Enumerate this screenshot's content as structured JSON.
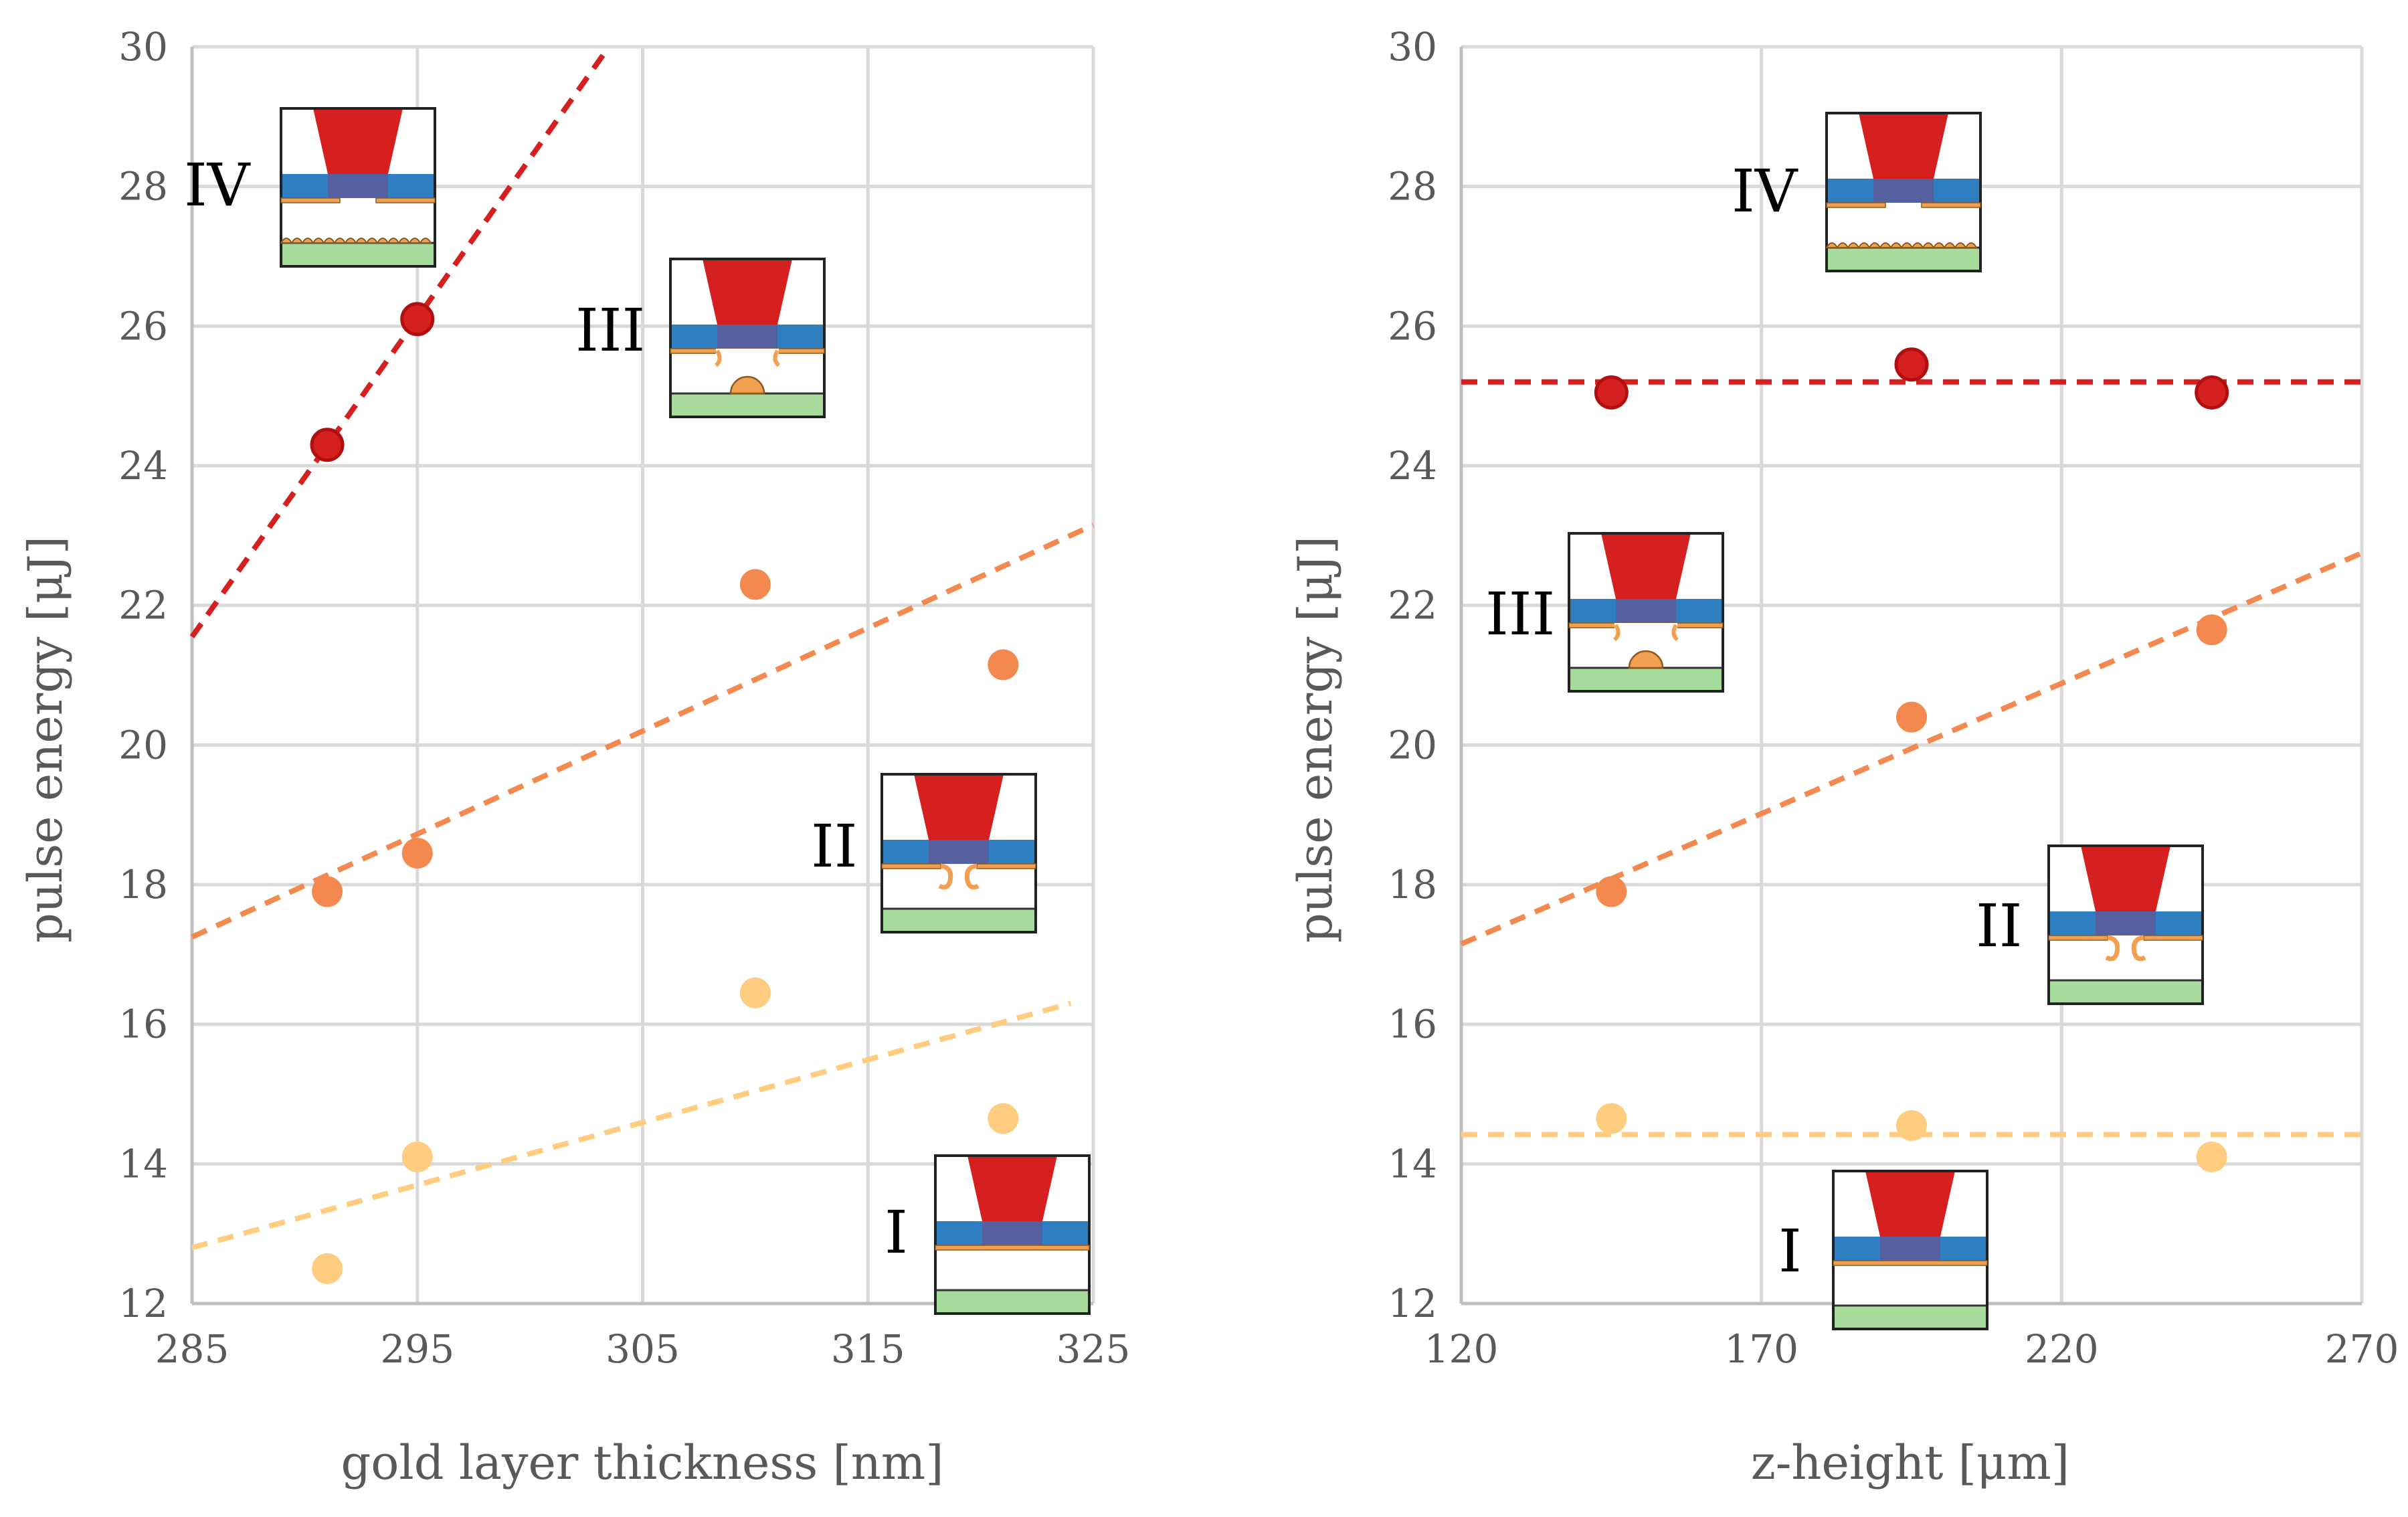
{
  "colors": {
    "regime_I": "#FFCC80",
    "regime_II": "#F4894F",
    "regime_III": "#F4894F",
    "regime_IV": "#D62020",
    "marker_IV_edge": "#B01010",
    "schematic_top": "#D62020",
    "schematic_layer": "#2E7EC1",
    "schematic_window": "#5560A0",
    "schematic_gold": "#F0A050",
    "schematic_substrate": "#A6DB9B"
  },
  "chart_data": [
    {
      "type": "scatter",
      "xlabel": "gold layer thickness [nm]",
      "ylabel": "pulse energy [μJ]",
      "xlim": [
        285,
        325
      ],
      "ylim": [
        12,
        30
      ],
      "xticks": [
        "285",
        "295",
        "305",
        "315",
        "325"
      ],
      "yticks": [
        "12",
        "14",
        "16",
        "18",
        "20",
        "22",
        "24",
        "26",
        "28",
        "30"
      ],
      "grid": true,
      "series": [
        {
          "name": "I",
          "color": "#FFCC80",
          "x": [
            291,
            295,
            310,
            321
          ],
          "y": [
            12.5,
            14.1,
            16.45,
            14.65
          ],
          "trend": [
            [
              285,
              12.8
            ],
            [
              324,
              16.3
            ]
          ]
        },
        {
          "name": "II-III",
          "color": "#F4894F",
          "x": [
            291,
            295,
            310,
            321
          ],
          "y": [
            17.9,
            18.45,
            22.3,
            21.15
          ],
          "trend": [
            [
              285,
              17.25
            ],
            [
              325,
              23.15
            ]
          ]
        },
        {
          "name": "IV",
          "color": "#D62020",
          "x": [
            291,
            295
          ],
          "y": [
            24.3,
            26.1
          ],
          "trend": [
            [
              285,
              21.55
            ],
            [
              303.5,
              30
            ]
          ]
        }
      ],
      "annotations": [
        "IV",
        "III",
        "II",
        "I"
      ]
    },
    {
      "type": "scatter",
      "xlabel": "z-height [μm]",
      "ylabel": "pulse energy [μJ]",
      "xlim": [
        120,
        270
      ],
      "ylim": [
        12,
        30
      ],
      "xticks": [
        "120",
        "170",
        "220",
        "270"
      ],
      "yticks": [
        "12",
        "14",
        "16",
        "18",
        "20",
        "22",
        "24",
        "26",
        "28",
        "30"
      ],
      "grid": true,
      "series": [
        {
          "name": "I",
          "color": "#FFCC80",
          "x": [
            145,
            195,
            245
          ],
          "y": [
            14.65,
            14.55,
            14.1
          ],
          "trend": [
            [
              120,
              14.42
            ],
            [
              270,
              14.42
            ]
          ]
        },
        {
          "name": "II-III",
          "color": "#F4894F",
          "x": [
            145,
            195,
            245
          ],
          "y": [
            17.9,
            20.4,
            21.65
          ],
          "trend": [
            [
              120,
              17.15
            ],
            [
              270,
              22.75
            ]
          ]
        },
        {
          "name": "IV",
          "color": "#D62020",
          "x": [
            145,
            195,
            245
          ],
          "y": [
            25.05,
            25.45,
            25.05
          ],
          "trend": [
            [
              120,
              25.2
            ],
            [
              270,
              25.2
            ]
          ]
        }
      ],
      "annotations": [
        "IV",
        "III",
        "II",
        "I"
      ]
    }
  ]
}
